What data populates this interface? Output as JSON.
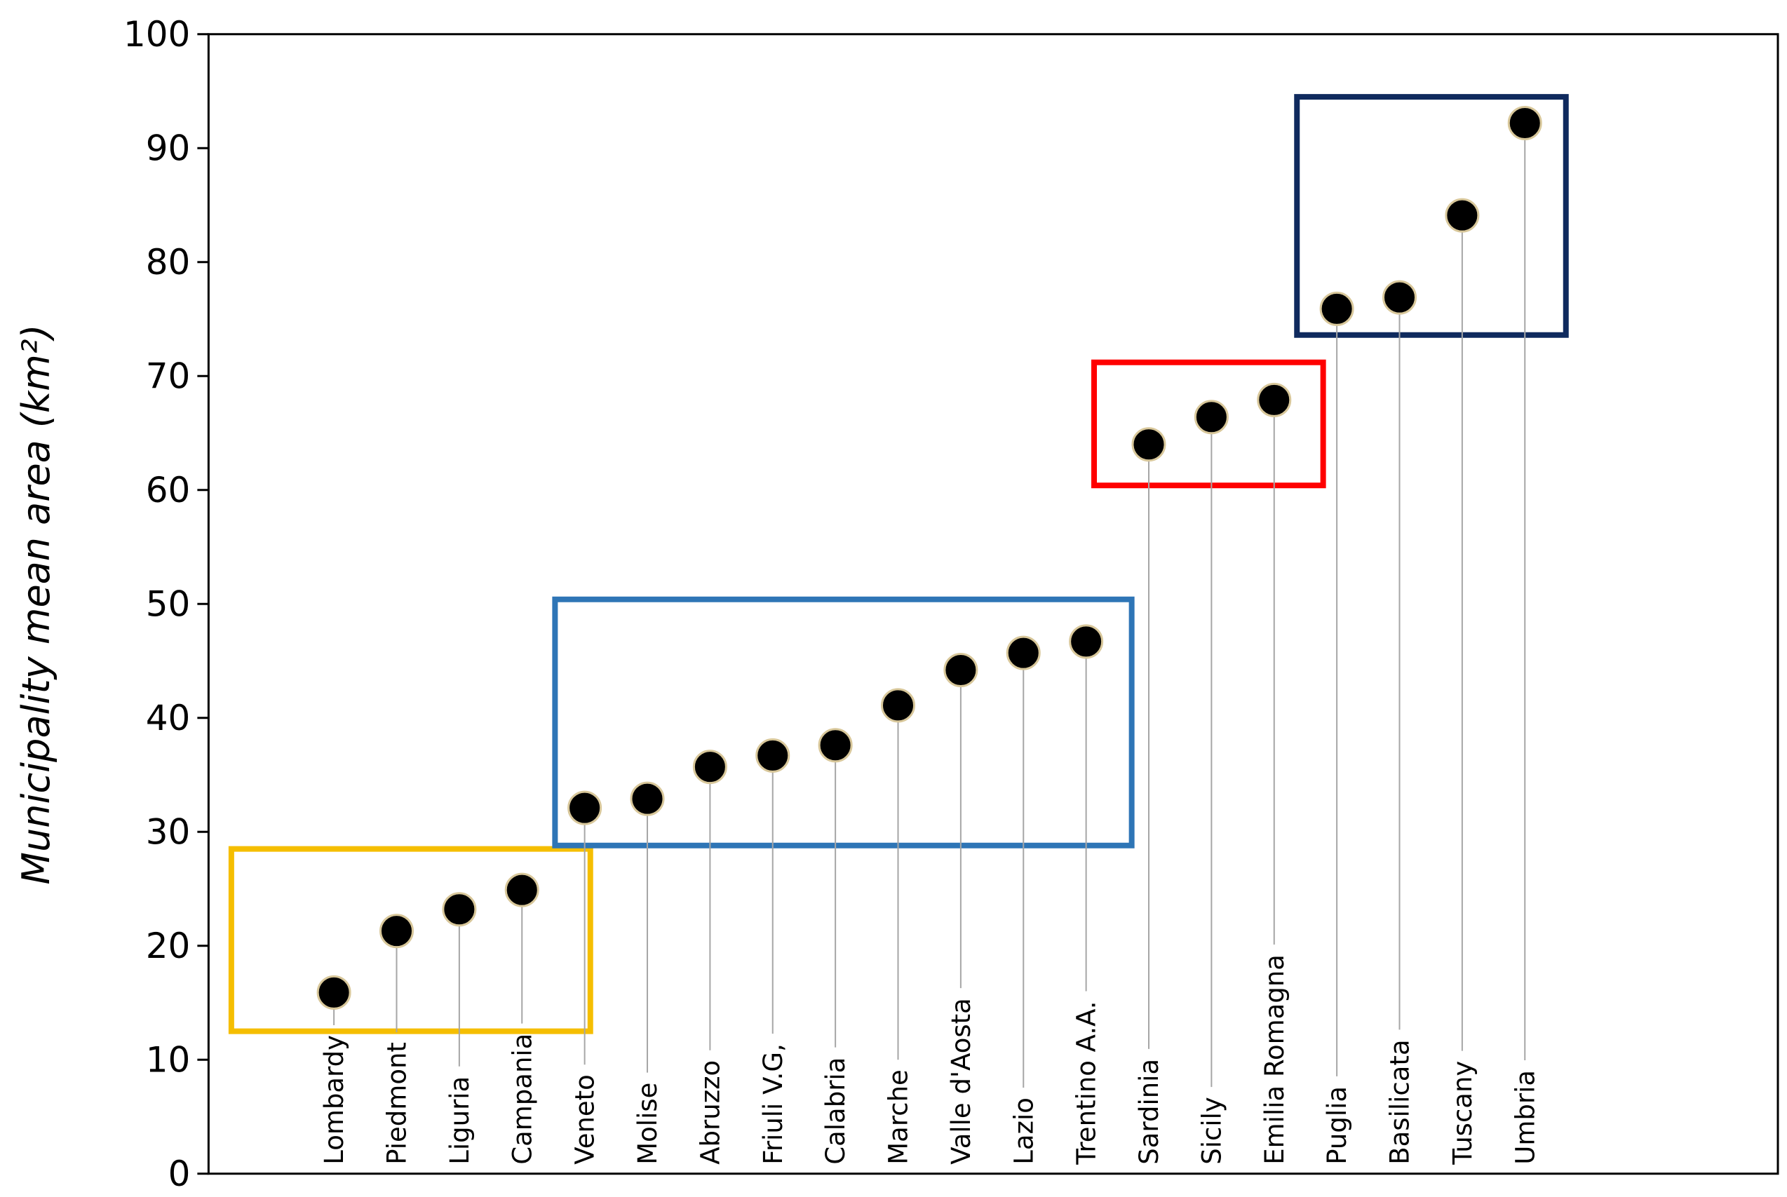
{
  "chart_data": {
    "type": "lollipop",
    "y_label": "Municipality mean area (km²)",
    "categories": [
      "Lombardy",
      "Piedmont",
      "Liguria",
      "Campania",
      "Veneto",
      "Molise",
      "Abruzzo",
      "Friuli V.G,",
      "Calabria",
      "Marche",
      "Valle d'Aosta",
      "Lazio",
      "Trentino A.A.",
      "Sardinia",
      "Sicily",
      "Emilia Romagna",
      "Puglia",
      "Basilicata",
      "Tuscany",
      "Umbria"
    ],
    "values": [
      15.9,
      21.3,
      23.2,
      24.9,
      32.1,
      32.9,
      35.7,
      36.7,
      37.6,
      41.1,
      44.2,
      45.7,
      46.7,
      64.0,
      66.4,
      67.9,
      75.9,
      76.9,
      84.1,
      92.2
    ],
    "color": "#000000",
    "ylim": [
      0,
      100
    ],
    "yticks": [
      0,
      10,
      20,
      30,
      40,
      50,
      60,
      70,
      80,
      90,
      100
    ]
  }
}
